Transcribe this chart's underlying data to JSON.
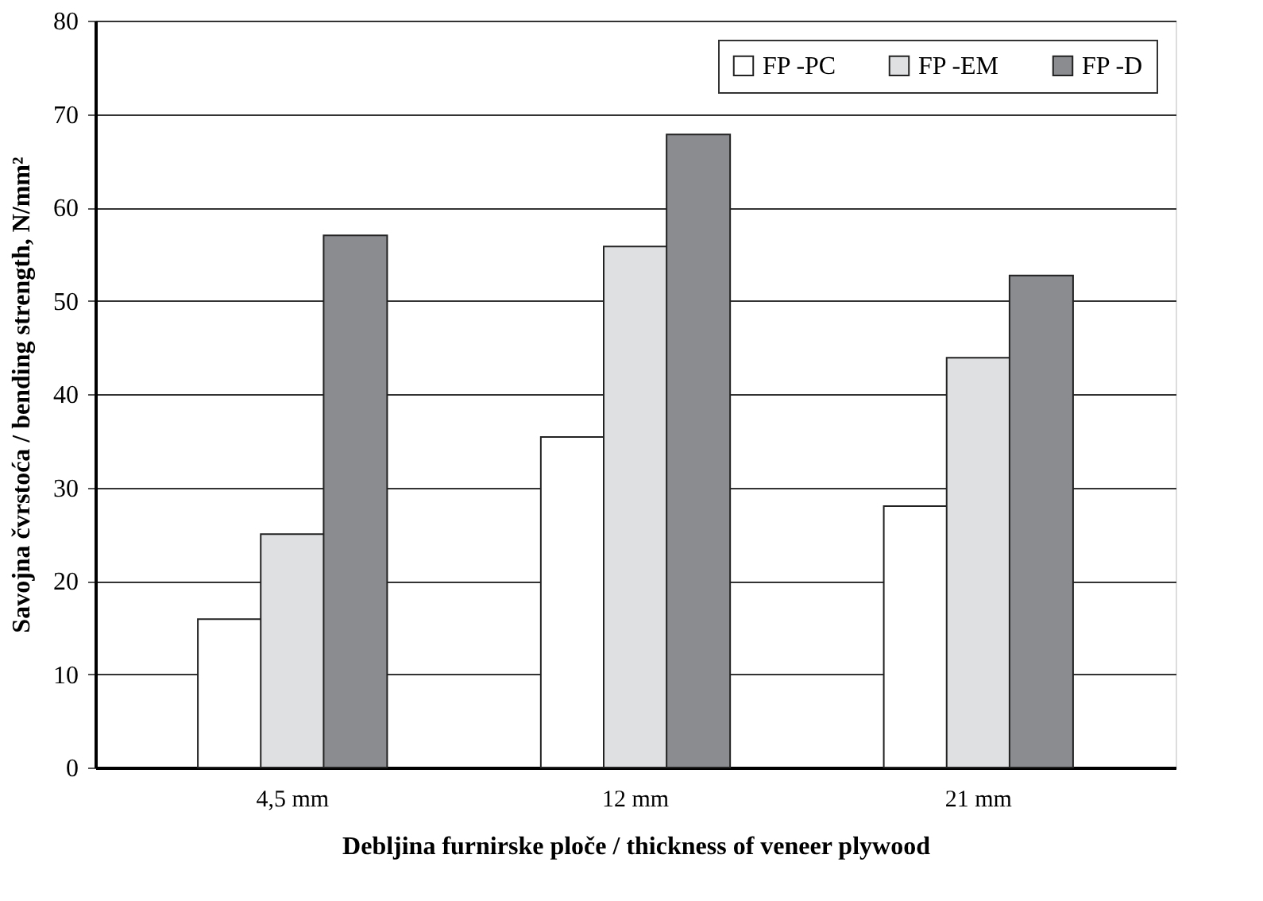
{
  "chart_data": {
    "type": "bar",
    "xlabel": "Debljina furnirske ploče / thickness of veneer plywood",
    "ylabel": "Savojna čvrstoća / bending strength, N/mm²",
    "categories": [
      "4,5 mm",
      "12  mm",
      "21 mm"
    ],
    "series": [
      {
        "name": "FP -PC",
        "color": "#ffffff",
        "values": [
          15.9,
          35.4,
          28.0
        ]
      },
      {
        "name": "FP -EM",
        "color": "#dfe0e2",
        "values": [
          25.0,
          55.8,
          43.9
        ]
      },
      {
        "name": "FP -D",
        "color": "#8b8c90",
        "values": [
          57.0,
          67.8,
          52.7
        ]
      }
    ],
    "ylim": [
      0,
      80
    ],
    "yticks": [
      0,
      10,
      20,
      30,
      40,
      50,
      60,
      70,
      80
    ],
    "grid": "y",
    "legend": "top right"
  }
}
